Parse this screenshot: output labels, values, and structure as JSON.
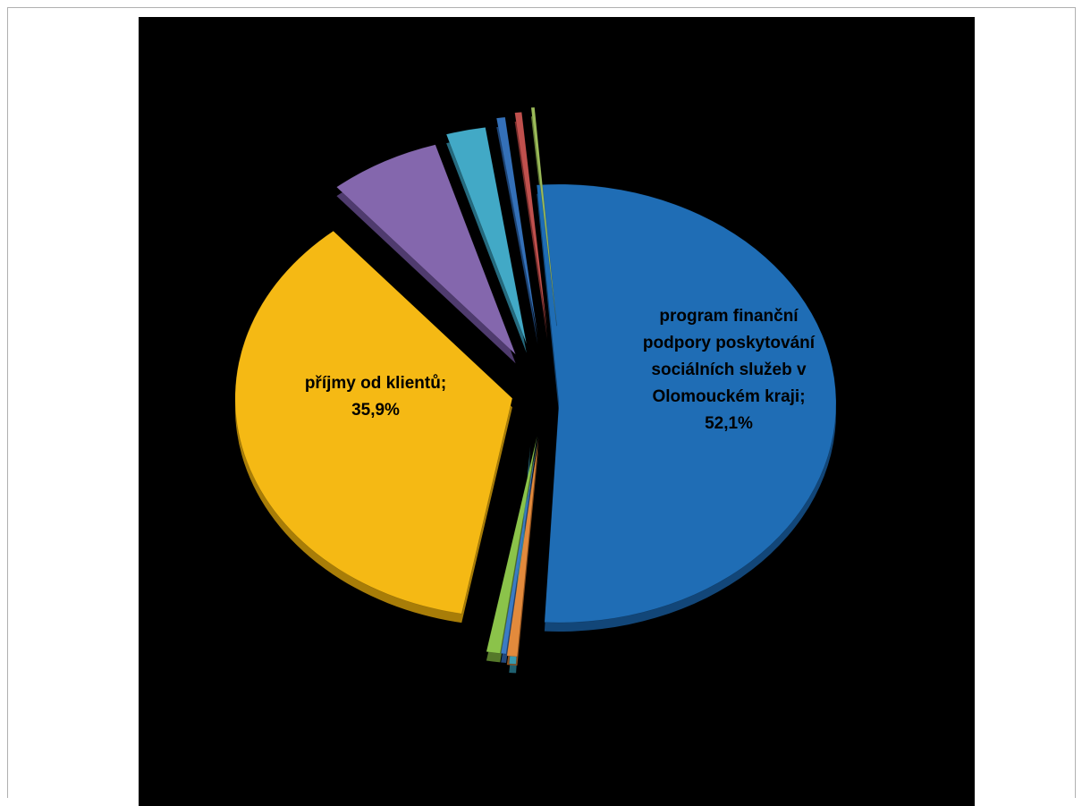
{
  "chart_data": {
    "type": "pie",
    "title": "",
    "slices": [
      {
        "label": "program finanční podpory poskytování sociálních služeb v Olomouckém kraji",
        "value": 52.1,
        "display": "52,1%",
        "color": "#1f6db5",
        "shade": "#124678",
        "show_label": true,
        "label_lines": [
          "program finanční",
          "podpory poskytování",
          "sociálních služeb v",
          "Olomouckém kraji;",
          "52,1%"
        ]
      },
      {
        "label": "",
        "value": 0.4,
        "color": "#3a9bb0",
        "shade": "#1f6070",
        "show_label": false
      },
      {
        "label": "",
        "value": 0.6,
        "color": "#e38a3c",
        "shade": "#8f4f1c",
        "show_label": false
      },
      {
        "label": "",
        "value": 0.3,
        "color": "#3b7bc4",
        "shade": "#22477a",
        "show_label": false
      },
      {
        "label": "",
        "value": 0.8,
        "color": "#8bc34a",
        "shade": "#55782a",
        "show_label": false
      },
      {
        "label": "příjmy od klientů",
        "value": 35.9,
        "display": "35,9%",
        "color": "#f5b914",
        "shade": "#a87d08",
        "show_label": true,
        "label_lines": [
          "příjmy od klientů;",
          "35,9%"
        ]
      },
      {
        "label": "",
        "value": 6.5,
        "color": "#8467ad",
        "shade": "#4f3b6e",
        "show_label": false
      },
      {
        "label": "",
        "value": 2.3,
        "color": "#42a9c6",
        "shade": "#256a7e",
        "show_label": false
      },
      {
        "label": "",
        "value": 0.5,
        "color": "#3470b8",
        "shade": "#1d4373",
        "show_label": false
      },
      {
        "label": "",
        "value": 0.4,
        "color": "#c0504d",
        "shade": "#7a2f2d",
        "show_label": false
      },
      {
        "label": "",
        "value": 0.2,
        "color": "#9bbb59",
        "shade": "#627a35",
        "show_label": false
      }
    ]
  }
}
